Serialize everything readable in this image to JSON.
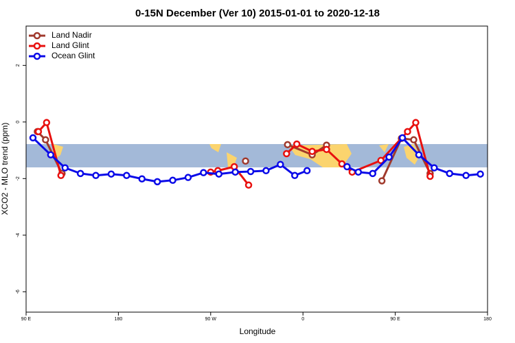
{
  "chart_data": {
    "type": "line",
    "title": "0-15N December (Ver 10)   2015-01-01 to 2020-12-18",
    "x_label": "Longitude",
    "y_label": "XCO2 - MLO trend (ppm)",
    "xlim": [
      90,
      540
    ],
    "xticks": [
      {
        "value": 90,
        "label": "90 E"
      },
      {
        "value": 180,
        "label": "180"
      },
      {
        "value": 270,
        "label": "90 W"
      },
      {
        "value": 360,
        "label": "0"
      },
      {
        "value": 450,
        "label": "90 E"
      },
      {
        "value": 540,
        "label": "180"
      }
    ],
    "ylim": [
      -6.72,
      3.39
    ],
    "yticks": [
      -6,
      -4,
      -2,
      0,
      2
    ],
    "legend": "top-left",
    "series": [
      {
        "name": "Land Nadir",
        "color": "#a0392c",
        "x": [
          101,
          109,
          125,
          null,
          304,
          null,
          345,
          369,
          383,
          null,
          437,
          456,
          468,
          484
        ],
        "values": [
          -0.34,
          -0.63,
          -1.82,
          null,
          -1.38,
          null,
          -0.8,
          -1.16,
          -0.82,
          null,
          -2.08,
          -0.58,
          -0.63,
          -1.82
        ]
      },
      {
        "name": "Land Glint",
        "color": "#e8100e",
        "x": [
          102,
          110,
          124,
          null,
          270,
          277,
          293,
          307,
          null,
          344,
          354,
          369,
          383,
          398,
          408,
          436,
          462,
          470,
          484
        ],
        "values": [
          -0.34,
          -0.02,
          -1.89,
          null,
          -1.77,
          -1.72,
          -1.58,
          -2.23,
          null,
          -1.12,
          -0.78,
          -1.04,
          -0.97,
          -1.48,
          -1.77,
          -1.36,
          -0.34,
          -0.02,
          -1.92
        ]
      },
      {
        "name": "Ocean Glint",
        "color": "#0a0ae8",
        "x": [
          96.7,
          114,
          128,
          143,
          158,
          173,
          188,
          203,
          218,
          233,
          248,
          263,
          278,
          294,
          309,
          324,
          338,
          352,
          364,
          null,
          403,
          414,
          428,
          444,
          457,
          473,
          488,
          503,
          519,
          533
        ],
        "values": [
          -0.56,
          -1.16,
          -1.62,
          -1.82,
          -1.89,
          -1.84,
          -1.89,
          -2.01,
          -2.11,
          -2.06,
          -1.96,
          -1.79,
          -1.84,
          -1.77,
          -1.75,
          -1.72,
          -1.5,
          -1.89,
          -1.72,
          null,
          -1.58,
          -1.77,
          -1.82,
          -1.24,
          -0.56,
          -1.16,
          -1.62,
          -1.82,
          -1.89,
          -1.84
        ]
      }
    ]
  }
}
